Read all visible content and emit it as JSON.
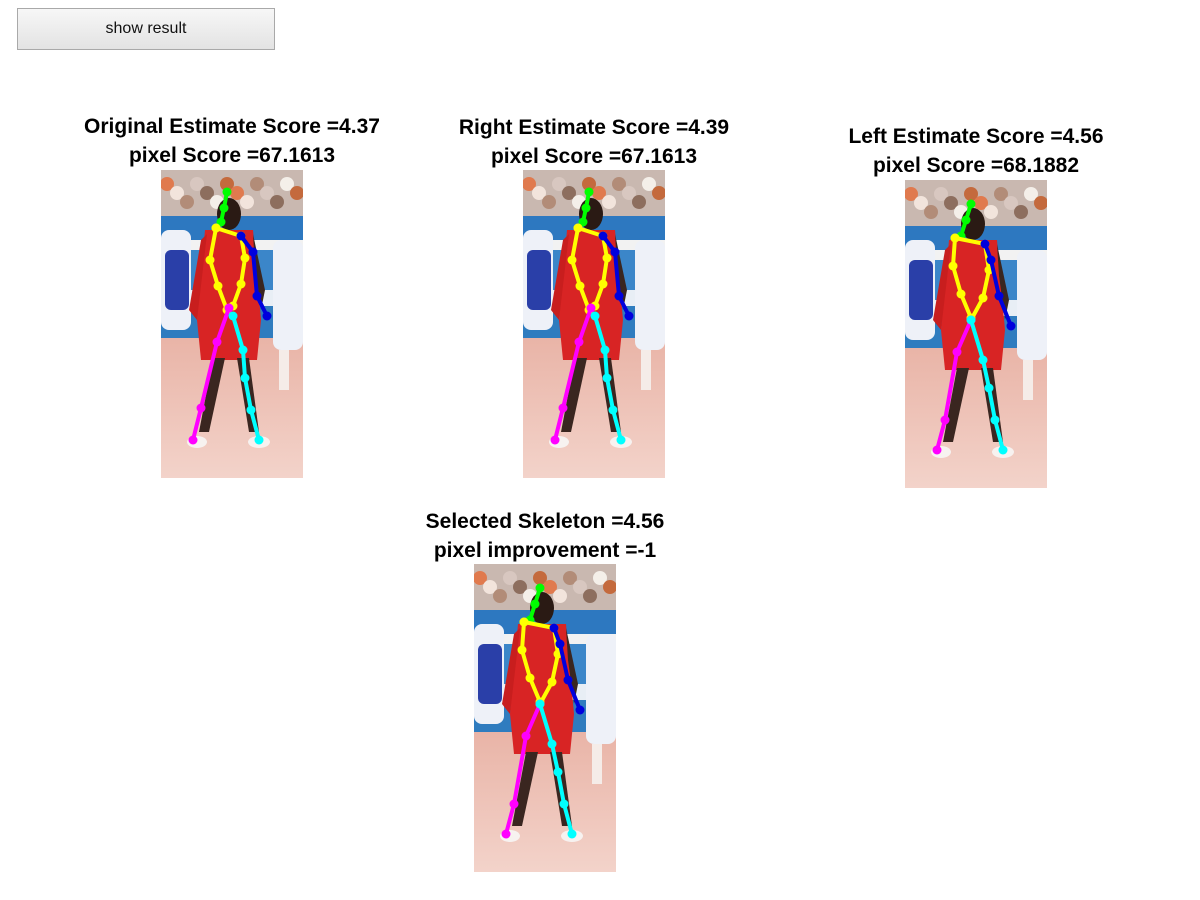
{
  "toolbar": {
    "show_result_label": "show result"
  },
  "panels": [
    {
      "id": "original",
      "title_line1": "Original Estimate Score =4.37",
      "title_line2": "pixel Score =67.1613"
    },
    {
      "id": "right",
      "title_line1": "Right Estimate Score =4.39",
      "title_line2": "pixel Score =67.1613"
    },
    {
      "id": "left",
      "title_line1": "Left Estimate Score =4.56",
      "title_line2": "pixel Score =68.1882"
    },
    {
      "id": "selected",
      "title_line1": "Selected Skeleton =4.56",
      "title_line2": "pixel improvement =-1"
    }
  ],
  "skeleton_colors": {
    "head": "#00ff00",
    "torso": "#ffff00",
    "right_arm": "#ffff00",
    "left_arm": "#0000dd",
    "right_leg": "#ff00ff",
    "left_leg": "#00ffff"
  }
}
